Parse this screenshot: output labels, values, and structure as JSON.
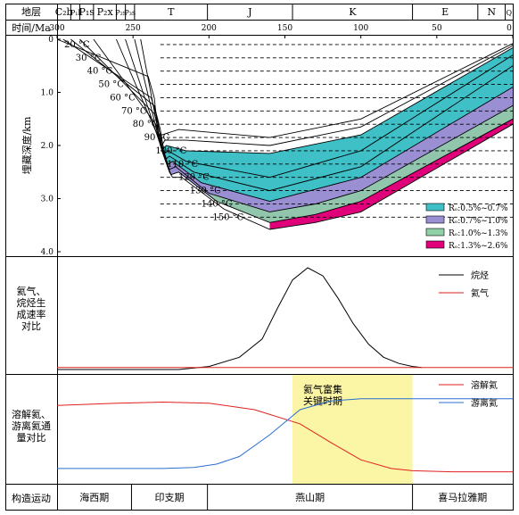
{
  "header": {
    "stratum_label": "地层",
    "time_label": "时间/Ma"
  },
  "strata": [
    {
      "name": "C₂b",
      "from": 300,
      "to": 291
    },
    {
      "name": "P₁l",
      "from": 291,
      "to": 285
    },
    {
      "name": "P₁s",
      "from": 285,
      "to": 276
    },
    {
      "name": "P₂x",
      "from": 276,
      "to": 261
    },
    {
      "name": "P₂s",
      "from": 261,
      "to": 255
    },
    {
      "name": "P₃s",
      "from": 255,
      "to": 249
    },
    {
      "name": "T",
      "from": 249,
      "to": 201
    },
    {
      "name": "J",
      "from": 201,
      "to": 145
    },
    {
      "name": "K",
      "from": 145,
      "to": 66
    },
    {
      "name": "E",
      "from": 66,
      "to": 23
    },
    {
      "name": "N",
      "from": 23,
      "to": 5
    },
    {
      "name": "Q",
      "from": 5,
      "to": 0
    }
  ],
  "time_ticks": [
    300,
    250,
    200,
    150,
    100,
    50,
    0
  ],
  "chart_data": [
    {
      "type": "area",
      "panel": "burial-history",
      "ylabel": "埋藏深度/km",
      "xlim": [
        300,
        0
      ],
      "ylim": [
        0,
        4.0
      ],
      "y_ticks": [
        "0",
        "1.0",
        "2.0",
        "3.0",
        "4.0"
      ],
      "isotherm_labels": [
        "20 °C",
        "30 °C",
        "40 °C",
        "50 °C",
        "60 °C",
        "70 °C",
        "80 °C",
        "90 °C",
        "100 °C",
        "110 °C",
        "120 °C",
        "130 °C",
        "140 °C",
        "150 °C"
      ],
      "burial_curves": [
        [
          [
            300,
            0.0
          ],
          [
            240,
            0.7
          ],
          [
            236,
            1.1
          ],
          [
            233,
            1.9
          ],
          [
            231,
            1.8
          ],
          [
            220,
            1.7
          ],
          [
            160,
            1.85
          ],
          [
            100,
            1.5
          ],
          [
            0,
            0.08
          ]
        ],
        [
          [
            296,
            0.0
          ],
          [
            238,
            1.1
          ],
          [
            234,
            1.5
          ],
          [
            231,
            2.0
          ],
          [
            229,
            1.9
          ],
          [
            215,
            1.9
          ],
          [
            160,
            2.0
          ],
          [
            100,
            1.65
          ],
          [
            0,
            0.12
          ]
        ],
        [
          [
            291,
            0.0
          ],
          [
            236,
            1.25
          ],
          [
            232,
            1.7
          ],
          [
            230,
            2.05
          ],
          [
            228,
            2.0
          ],
          [
            215,
            2.1
          ],
          [
            160,
            2.15
          ],
          [
            100,
            1.8
          ],
          [
            0,
            0.16
          ]
        ],
        [
          [
            285,
            0.0
          ],
          [
            236,
            1.4
          ],
          [
            231,
            1.9
          ],
          [
            229,
            2.15
          ],
          [
            227,
            2.1
          ],
          [
            215,
            2.3
          ],
          [
            160,
            2.6
          ],
          [
            100,
            2.1
          ],
          [
            0,
            0.3
          ]
        ],
        [
          [
            276,
            0.0
          ],
          [
            235,
            1.6
          ],
          [
            230,
            2.1
          ],
          [
            228,
            2.25
          ],
          [
            226,
            2.2
          ],
          [
            210,
            2.5
          ],
          [
            160,
            2.85
          ],
          [
            100,
            2.4
          ],
          [
            0,
            0.5
          ]
        ],
        [
          [
            261,
            0.0
          ],
          [
            234,
            1.8
          ],
          [
            229,
            2.2
          ],
          [
            227,
            2.35
          ],
          [
            224,
            2.3
          ],
          [
            205,
            2.7
          ],
          [
            160,
            3.05
          ],
          [
            100,
            2.6
          ],
          [
            0,
            0.9
          ]
        ],
        [
          [
            255,
            0.0
          ],
          [
            233,
            1.9
          ],
          [
            228,
            2.3
          ],
          [
            226,
            2.45
          ],
          [
            222,
            2.4
          ],
          [
            200,
            2.9
          ],
          [
            160,
            3.25
          ],
          [
            130,
            3.1
          ],
          [
            100,
            2.85
          ],
          [
            0,
            1.25
          ]
        ],
        [
          [
            249,
            0.0
          ],
          [
            232,
            2.0
          ],
          [
            227,
            2.4
          ],
          [
            225,
            2.55
          ],
          [
            220,
            2.5
          ],
          [
            195,
            3.05
          ],
          [
            160,
            3.45
          ],
          [
            130,
            3.3
          ],
          [
            100,
            3.05
          ],
          [
            0,
            1.5
          ]
        ],
        [
          [
            245,
            0.0
          ],
          [
            231,
            2.1
          ],
          [
            226,
            2.5
          ],
          [
            224,
            2.6
          ],
          [
            218,
            2.6
          ],
          [
            190,
            3.2
          ],
          [
            160,
            3.58
          ],
          [
            130,
            3.45
          ],
          [
            100,
            3.25
          ],
          [
            0,
            1.6
          ]
        ]
      ],
      "isotherms_depth_km": [
        0.1,
        0.35,
        0.6,
        0.85,
        1.1,
        1.35,
        1.6,
        1.85,
        2.1,
        2.35,
        2.6,
        2.85,
        3.1,
        3.35
      ],
      "maturity_legend": [
        {
          "label": "Rₒ:0.5%~0.7%",
          "color": "#3fbfc6"
        },
        {
          "label": "Rₒ:0.7%~1.0%",
          "color": "#9b8fd4"
        },
        {
          "label": "Rₒ:1.0%~1.3%",
          "color": "#8fd0a6"
        },
        {
          "label": "Rₒ:1.3%~2.6%",
          "color": "#e0007a"
        }
      ]
    },
    {
      "type": "line",
      "panel": "generation-rate",
      "ylabel": "氦气、烷烃生成速率对比",
      "series": [
        {
          "name": "烷烃",
          "color": "#000000",
          "x": [
            300,
            220,
            200,
            180,
            165,
            155,
            145,
            135,
            125,
            115,
            105,
            95,
            85,
            75,
            66,
            60
          ],
          "y": [
            0,
            0,
            0.03,
            0.12,
            0.3,
            0.6,
            0.88,
            1.0,
            0.92,
            0.7,
            0.45,
            0.25,
            0.12,
            0.06,
            0.03,
            0.02
          ]
        },
        {
          "name": "氦气",
          "color": "#e0201e",
          "x": [
            300,
            0
          ],
          "y": [
            0.02,
            0.02
          ]
        }
      ]
    },
    {
      "type": "line",
      "panel": "helium-flux",
      "ylabel": "溶解氦、游离氦通量对比",
      "annotation": "氦气富集关键时期",
      "highlight": {
        "from": 145,
        "to": 66,
        "color": "#fbf5a6"
      },
      "series": [
        {
          "name": "溶解氦",
          "color": "#e0201e",
          "x": [
            300,
            260,
            230,
            200,
            170,
            140,
            120,
            100,
            80,
            66,
            40,
            0
          ],
          "y": [
            0.72,
            0.74,
            0.75,
            0.74,
            0.68,
            0.55,
            0.38,
            0.22,
            0.14,
            0.12,
            0.11,
            0.11
          ]
        },
        {
          "name": "游离氦",
          "color": "#2a6fcf",
          "x": [
            300,
            260,
            230,
            210,
            195,
            180,
            160,
            140,
            120,
            100,
            66,
            40,
            0
          ],
          "y": [
            0.14,
            0.14,
            0.14,
            0.15,
            0.18,
            0.25,
            0.45,
            0.68,
            0.76,
            0.78,
            0.78,
            0.78,
            0.78
          ]
        }
      ]
    }
  ],
  "tectonic": {
    "label": "构造运动",
    "periods": [
      {
        "name": "海西期",
        "from": 300,
        "to": 251
      },
      {
        "name": "印支期",
        "from": 251,
        "to": 201
      },
      {
        "name": "燕山期",
        "from": 201,
        "to": 66
      },
      {
        "name": "喜马拉雅期",
        "from": 66,
        "to": 0
      }
    ]
  },
  "colors": {
    "frame": "#000000",
    "grid_dash": "#000000"
  }
}
